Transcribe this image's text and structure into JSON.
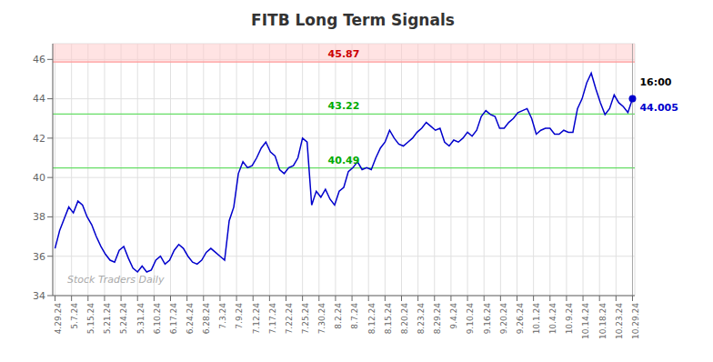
{
  "chart_data": {
    "type": "line",
    "title": "FITB Long Term Signals",
    "color": "#0000cc",
    "grid": true,
    "x": [
      0,
      1,
      2,
      3,
      4,
      5,
      6,
      7,
      8,
      9,
      10,
      11,
      12,
      13,
      14,
      15,
      16,
      17,
      18,
      19,
      20,
      21,
      22,
      23,
      24,
      25,
      26,
      27,
      28,
      29,
      30,
      31,
      32,
      33,
      34,
      35,
      36,
      37,
      38,
      39,
      40,
      41,
      42,
      43,
      44,
      45,
      46,
      47,
      48,
      49,
      50,
      51,
      52,
      53,
      54,
      55,
      56,
      57,
      58,
      59,
      60,
      61,
      62,
      63,
      64,
      65,
      66,
      67,
      68,
      69,
      70,
      71,
      72,
      73,
      74,
      75,
      76,
      77,
      78,
      79,
      80,
      81,
      82,
      83,
      84,
      85,
      86,
      87,
      88,
      89,
      90,
      91,
      92,
      93,
      94,
      95,
      96,
      97,
      98,
      99,
      100,
      101,
      102,
      103,
      104,
      105,
      106,
      107,
      108,
      109,
      110,
      111,
      112,
      113,
      114,
      115,
      116,
      117,
      118,
      119,
      120,
      121,
      122,
      123,
      124,
      125,
      126
    ],
    "values": [
      36.4,
      37.3,
      37.9,
      38.5,
      38.2,
      38.8,
      38.6,
      38.0,
      37.6,
      37.0,
      36.5,
      36.1,
      35.8,
      35.7,
      36.3,
      36.5,
      35.9,
      35.4,
      35.2,
      35.5,
      35.2,
      35.3,
      35.8,
      36.0,
      35.6,
      35.8,
      36.3,
      36.6,
      36.4,
      36.0,
      35.7,
      35.6,
      35.8,
      36.2,
      36.4,
      36.2,
      36.0,
      35.8,
      37.8,
      38.5,
      40.2,
      40.8,
      40.5,
      40.6,
      41.0,
      41.5,
      41.8,
      41.3,
      41.1,
      40.4,
      40.2,
      40.5,
      40.6,
      41.0,
      42.0,
      41.8,
      38.6,
      39.3,
      39.0,
      39.4,
      38.9,
      38.6,
      39.3,
      39.5,
      40.3,
      40.5,
      40.8,
      40.4,
      40.5,
      40.4,
      41.0,
      41.5,
      41.8,
      42.4,
      42.0,
      41.7,
      41.6,
      41.8,
      42.0,
      42.3,
      42.5,
      42.8,
      42.6,
      42.4,
      42.5,
      41.8,
      41.6,
      41.9,
      41.8,
      42.0,
      42.3,
      42.1,
      42.4,
      43.1,
      43.4,
      43.2,
      43.1,
      42.5,
      42.5,
      42.8,
      43.0,
      43.3,
      43.4,
      43.5,
      43.0,
      42.2,
      42.4,
      42.5,
      42.5,
      42.2,
      42.2,
      42.4,
      42.3,
      42.3,
      43.5,
      44.0,
      44.8,
      45.3,
      44.5,
      43.8,
      43.2,
      43.5,
      44.2,
      43.8,
      43.6,
      43.3,
      44.005
    ],
    "xlim": [
      -0.5,
      126.5
    ],
    "xticks": [
      {
        "value": 0,
        "label": "4.29.24"
      },
      {
        "value": 3.6,
        "label": "5.7.24"
      },
      {
        "value": 7.2,
        "label": "5.15.24"
      },
      {
        "value": 10.8,
        "label": "5.21.24"
      },
      {
        "value": 14.4,
        "label": "5.24.24"
      },
      {
        "value": 18,
        "label": "5.31.24"
      },
      {
        "value": 21.6,
        "label": "6.10.24"
      },
      {
        "value": 25.2,
        "label": "6.17.24"
      },
      {
        "value": 28.8,
        "label": "6.24.24"
      },
      {
        "value": 32.4,
        "label": "6.28.24"
      },
      {
        "value": 36,
        "label": "7.3.24"
      },
      {
        "value": 39.6,
        "label": "7.9.24"
      },
      {
        "value": 43.2,
        "label": "7.12.24"
      },
      {
        "value": 46.8,
        "label": "7.17.24"
      },
      {
        "value": 50.4,
        "label": "7.22.24"
      },
      {
        "value": 54,
        "label": "7.25.24"
      },
      {
        "value": 57.6,
        "label": "7.30.24"
      },
      {
        "value": 61.2,
        "label": "8.2.24"
      },
      {
        "value": 64.8,
        "label": "8.7.24"
      },
      {
        "value": 68.4,
        "label": "8.12.24"
      },
      {
        "value": 72,
        "label": "8.15.24"
      },
      {
        "value": 75.6,
        "label": "8.20.24"
      },
      {
        "value": 79.2,
        "label": "8.23.24"
      },
      {
        "value": 82.8,
        "label": "8.29.24"
      },
      {
        "value": 86.4,
        "label": "9.4.24"
      },
      {
        "value": 90,
        "label": "9.10.24"
      },
      {
        "value": 93.6,
        "label": "9.16.24"
      },
      {
        "value": 97.2,
        "label": "9.20.24"
      },
      {
        "value": 100.8,
        "label": "9.26.24"
      },
      {
        "value": 104.4,
        "label": "10.1.24"
      },
      {
        "value": 108,
        "label": "10.4.24"
      },
      {
        "value": 111.6,
        "label": "10.9.24"
      },
      {
        "value": 115.2,
        "label": "10.14.24"
      },
      {
        "value": 118.8,
        "label": "10.18.24"
      },
      {
        "value": 122.4,
        "label": "10.23.24"
      },
      {
        "value": 126,
        "label": "10.29.24"
      }
    ],
    "ylim": [
      34,
      46.8
    ],
    "yticks": [
      34,
      36,
      38,
      40,
      42,
      44,
      46
    ],
    "band": {
      "y_from": 45.87,
      "color": "#ffcccc"
    },
    "reference_lines": [
      {
        "y": 45.87,
        "color": "#ff9999",
        "label": "45.87",
        "label_color": "#cc0000"
      },
      {
        "y": 43.22,
        "color": "#66dd66",
        "label": "43.22",
        "label_color": "#00aa00"
      },
      {
        "y": 40.49,
        "color": "#66dd66",
        "label": "40.49",
        "label_color": "#00aa00"
      }
    ],
    "last_point": {
      "x": 126,
      "y": 44.005,
      "label": "16:00"
    },
    "watermark": "Stock Traders Daily"
  }
}
